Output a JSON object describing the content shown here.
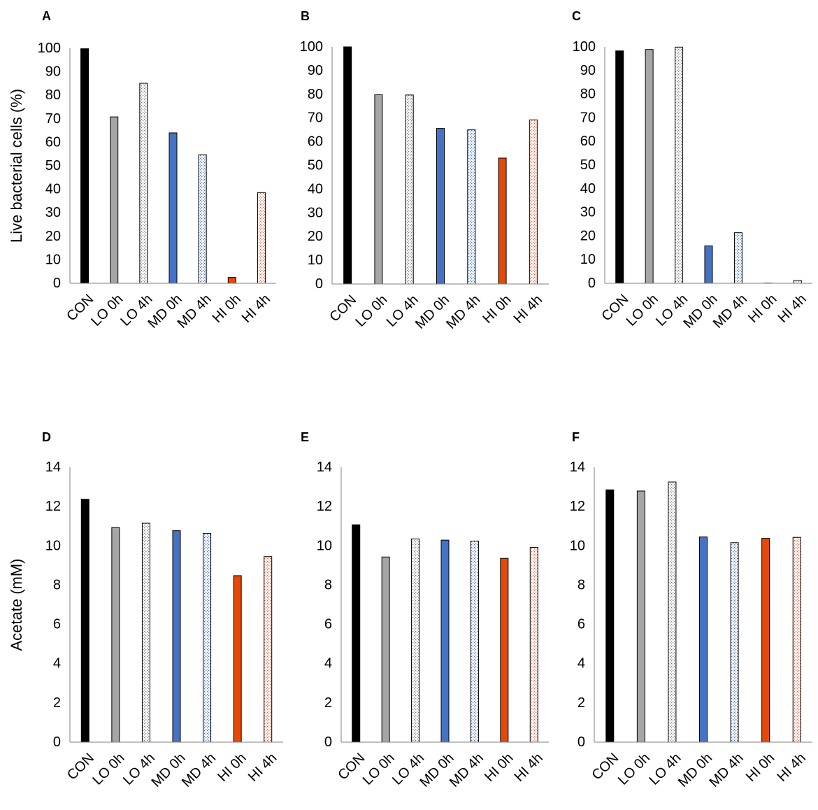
{
  "patterns": {
    "black-fill": {
      "color": "#000000"
    },
    "gray-fill": {
      "color": "#a6a6a6"
    },
    "dotted-gray": {
      "color": "#7f7f7f"
    },
    "blue-fill": {
      "color": "#4472c4"
    },
    "dotted-blue": {
      "color": "#4472c4"
    },
    "orange-fill": {
      "color": "#e34a0a"
    },
    "dotted-orange": {
      "color": "#f0603a"
    }
  },
  "chart_data": [
    {
      "panel": "A",
      "type": "bar",
      "categories": [
        "CON",
        "LO 0h",
        "LO 4h",
        "MD 0h",
        "MD 4h",
        "HI 0h",
        "HI 4h"
      ],
      "values": [
        99.8,
        70.8,
        85.1,
        64.0,
        54.7,
        2.5,
        38.6
      ],
      "fills": [
        "black-fill",
        "gray-fill",
        "dotted-gray",
        "blue-fill",
        "dotted-blue",
        "orange-fill",
        "dotted-orange"
      ],
      "ylabel": "Live bacterial cells (%)",
      "ylim": [
        0,
        100
      ],
      "yticks": [
        0,
        10,
        20,
        30,
        40,
        50,
        60,
        70,
        80,
        90,
        100
      ]
    },
    {
      "panel": "B",
      "type": "bar",
      "categories": [
        "CON",
        "LO 0h",
        "LO 4h",
        "MD 0h",
        "MD 4h",
        "HI 0h",
        "HI 4h"
      ],
      "values": [
        100.0,
        79.8,
        79.7,
        65.6,
        65.0,
        53.1,
        69.2
      ],
      "fills": [
        "black-fill",
        "gray-fill",
        "dotted-gray",
        "blue-fill",
        "dotted-blue",
        "orange-fill",
        "dotted-orange"
      ],
      "ylabel": "",
      "ylim": [
        0,
        100
      ],
      "yticks": [
        0,
        10,
        20,
        30,
        40,
        50,
        60,
        70,
        80,
        90,
        100
      ]
    },
    {
      "panel": "C",
      "type": "bar",
      "categories": [
        "CON",
        "LO 0h",
        "LO 4h",
        "MD 0h",
        "MD 4h",
        "HI 0h",
        "HI 4h"
      ],
      "values": [
        98.3,
        98.9,
        99.9,
        15.8,
        21.4,
        0.1,
        1.2
      ],
      "fills": [
        "black-fill",
        "gray-fill",
        "dotted-gray",
        "blue-fill",
        "dotted-blue",
        "orange-fill",
        "dotted-orange"
      ],
      "ylabel": "",
      "ylim": [
        0,
        100
      ],
      "yticks": [
        0,
        10,
        20,
        30,
        40,
        50,
        60,
        70,
        80,
        90,
        100
      ]
    },
    {
      "panel": "D",
      "type": "bar",
      "categories": [
        "CON",
        "LO 0h",
        "LO 4h",
        "MD 0h",
        "MD 4h",
        "HI 0h",
        "HI 4h"
      ],
      "values": [
        12.37,
        10.93,
        11.15,
        10.77,
        10.63,
        8.48,
        9.45
      ],
      "fills": [
        "black-fill",
        "gray-fill",
        "dotted-gray",
        "blue-fill",
        "dotted-blue",
        "orange-fill",
        "dotted-orange"
      ],
      "ylabel": "Acetate (mM)",
      "ylim": [
        0,
        14
      ],
      "yticks": [
        0,
        2,
        4,
        6,
        8,
        10,
        12,
        14
      ]
    },
    {
      "panel": "E",
      "type": "bar",
      "categories": [
        "CON",
        "LO 0h",
        "LO 4h",
        "MD 0h",
        "MD 4h",
        "HI 0h",
        "HI 4h"
      ],
      "values": [
        11.07,
        9.43,
        10.35,
        10.29,
        10.24,
        9.36,
        9.92
      ],
      "fills": [
        "black-fill",
        "gray-fill",
        "dotted-gray",
        "blue-fill",
        "dotted-blue",
        "orange-fill",
        "dotted-orange"
      ],
      "ylabel": "",
      "ylim": [
        0,
        14
      ],
      "yticks": [
        0,
        2,
        4,
        6,
        8,
        10,
        12,
        14
      ]
    },
    {
      "panel": "F",
      "type": "bar",
      "categories": [
        "CON",
        "LO 0h",
        "LO 4h",
        "MD 0h",
        "MD 4h",
        "HI 0h",
        "HI 4h"
      ],
      "values": [
        12.85,
        12.79,
        13.25,
        10.45,
        10.16,
        10.38,
        10.43
      ],
      "fills": [
        "black-fill",
        "gray-fill",
        "dotted-gray",
        "blue-fill",
        "dotted-blue",
        "orange-fill",
        "dotted-orange"
      ],
      "ylabel": "",
      "ylim": [
        0,
        14
      ],
      "yticks": [
        0,
        2,
        4,
        6,
        8,
        10,
        12,
        14
      ]
    }
  ]
}
